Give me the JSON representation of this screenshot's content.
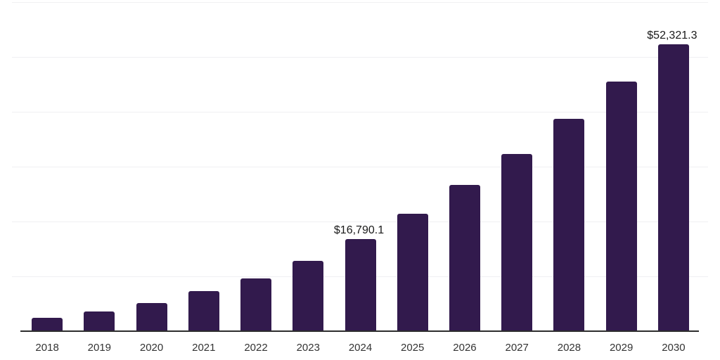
{
  "chart_data": {
    "type": "bar",
    "title": "",
    "xlabel": "",
    "ylabel": "",
    "categories": [
      "2018",
      "2019",
      "2020",
      "2021",
      "2022",
      "2023",
      "2024",
      "2025",
      "2026",
      "2027",
      "2028",
      "2029",
      "2030"
    ],
    "values": [
      2380,
      3570,
      5190,
      7300,
      9650,
      12830,
      16790.1,
      21370,
      26640,
      32330,
      38780,
      45500,
      52321.3
    ],
    "point_labels": [
      "",
      "",
      "",
      "",
      "",
      "",
      "$16,790.1",
      "",
      "",
      "",
      "",
      "",
      "$52,321.3"
    ],
    "ylim": [
      0,
      60000
    ],
    "gridline_interval": 10000,
    "grid": "horizontal",
    "legend": "none",
    "y_axis_ticks_visible": false,
    "colors": {
      "bar": "#321a4d",
      "axis": "#2d2d2d",
      "gridline": "#f0f0f2",
      "point_label_text": "#1a1a1a",
      "tick_label_text": "#333333",
      "background": "#ffffff"
    }
  }
}
